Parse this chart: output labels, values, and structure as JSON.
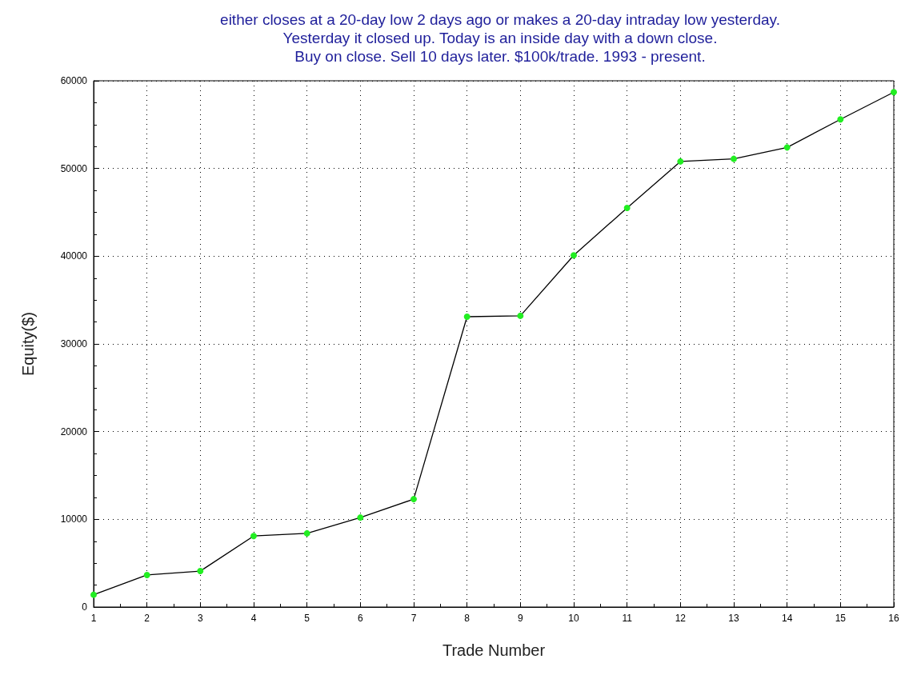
{
  "chart_data": {
    "type": "line",
    "title": "either closes at a 20-day low 2 days ago or makes a 20-day intraday low yesterday.\nYesterday it closed up. Today is an inside day with a down close.\nBuy on close. Sell 10 days later. $100k/trade. 1993 - present.",
    "xlabel": "Trade Number",
    "ylabel": "Equity($)",
    "x": [
      1,
      2,
      3,
      4,
      5,
      6,
      7,
      8,
      9,
      10,
      11,
      12,
      13,
      14,
      15,
      16
    ],
    "series": [
      {
        "color": "#000000",
        "values": [
          1400,
          3650,
          4100,
          8100,
          8400,
          10200,
          12300,
          33100,
          33200,
          40100,
          45500,
          50800,
          51100,
          52400,
          55600,
          58700
        ]
      }
    ],
    "xlim": [
      1,
      16
    ],
    "xticks": [
      1,
      2,
      3,
      4,
      5,
      6,
      7,
      8,
      9,
      10,
      11,
      12,
      13,
      14,
      15,
      16
    ],
    "ylim": [
      0,
      60000
    ],
    "yticks": [
      0,
      10000,
      20000,
      30000,
      40000,
      50000,
      60000
    ],
    "grid": true,
    "marker": "circle",
    "line_style": "solid"
  }
}
